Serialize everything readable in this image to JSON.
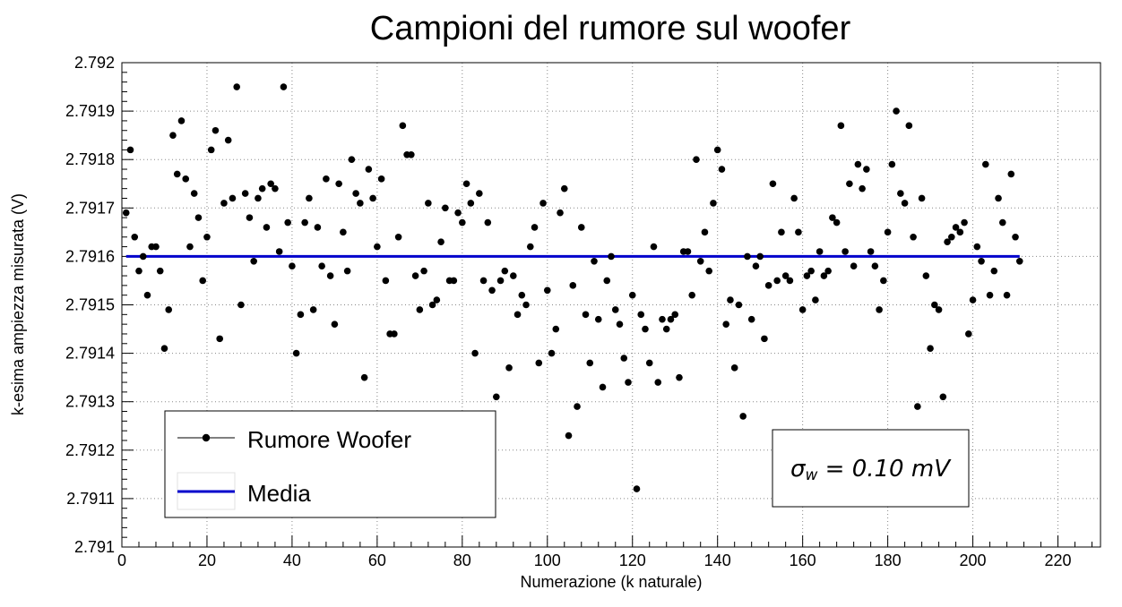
{
  "chart_data": {
    "type": "scatter",
    "title": "Campioni del rumore sul woofer",
    "xlabel": "Numerazione (k naturale)",
    "ylabel": "k-esima ampiezza misurata (V)",
    "xlim": [
      0,
      230
    ],
    "ylim": [
      2.791,
      2.792
    ],
    "xticks": [
      "0",
      "20",
      "40",
      "60",
      "80",
      "100",
      "120",
      "140",
      "160",
      "180",
      "200",
      "220"
    ],
    "yticks": [
      "2.791",
      "2.7911",
      "2.7912",
      "2.7913",
      "2.7914",
      "2.7915",
      "2.7916",
      "2.7917",
      "2.7918",
      "2.7919",
      "2.792"
    ],
    "grid": true,
    "legend_position": "bottom-left",
    "series": [
      {
        "name": "Rumore Woofer",
        "style": "markers",
        "color": "#000000",
        "x": [
          1,
          2,
          3,
          4,
          5,
          6,
          7,
          8,
          9,
          10,
          11,
          12,
          13,
          14,
          15,
          16,
          17,
          18,
          19,
          20,
          21,
          22,
          23,
          24,
          25,
          26,
          27,
          28,
          29,
          30,
          31,
          32,
          33,
          34,
          35,
          36,
          37,
          38,
          39,
          40,
          41,
          42,
          43,
          44,
          45,
          46,
          47,
          48,
          49,
          50,
          51,
          52,
          53,
          54,
          55,
          56,
          57,
          58,
          59,
          60,
          61,
          62,
          63,
          64,
          65,
          66,
          67,
          68,
          69,
          70,
          71,
          72,
          73,
          74,
          75,
          76,
          77,
          78,
          79,
          80,
          81,
          82,
          83,
          84,
          85,
          86,
          87,
          88,
          89,
          90,
          91,
          92,
          93,
          94,
          95,
          96,
          97,
          98,
          99,
          100,
          101,
          102,
          103,
          104,
          105,
          106,
          107,
          108,
          109,
          110,
          111,
          112,
          113,
          114,
          115,
          116,
          117,
          118,
          119,
          120,
          121,
          122,
          123,
          124,
          125,
          126,
          127,
          128,
          129,
          130,
          131,
          132,
          133,
          134,
          135,
          136,
          137,
          138,
          139,
          140,
          141,
          142,
          143,
          144,
          145,
          146,
          147,
          148,
          149,
          150,
          151,
          152,
          153,
          154,
          155,
          156,
          157,
          158,
          159,
          160,
          161,
          162,
          163,
          164,
          165,
          166,
          167,
          168,
          169,
          170,
          171,
          172,
          173,
          174,
          175,
          176,
          177,
          178,
          179,
          180,
          181,
          182,
          183,
          184,
          185,
          186,
          187,
          188,
          189,
          190,
          191,
          192,
          193,
          194,
          195,
          196,
          197,
          198,
          199,
          200,
          201,
          202,
          203,
          204,
          205,
          206,
          207,
          208,
          209,
          210,
          211
        ],
        "y": [
          2.79169,
          2.79182,
          2.79164,
          2.79157,
          2.7916,
          2.79152,
          2.79162,
          2.79162,
          2.79157,
          2.79141,
          2.79149,
          2.79185,
          2.79177,
          2.79188,
          2.79176,
          2.79162,
          2.79173,
          2.79168,
          2.79155,
          2.79164,
          2.79182,
          2.79186,
          2.79143,
          2.79171,
          2.79184,
          2.79172,
          2.79195,
          2.7915,
          2.79173,
          2.79168,
          2.79159,
          2.79172,
          2.79174,
          2.79166,
          2.79175,
          2.79174,
          2.79161,
          2.79195,
          2.79167,
          2.79158,
          2.7914,
          2.79148,
          2.79167,
          2.79172,
          2.79149,
          2.79166,
          2.79158,
          2.79176,
          2.79156,
          2.79146,
          2.79175,
          2.79165,
          2.79157,
          2.7918,
          2.79173,
          2.79171,
          2.79135,
          2.79178,
          2.79172,
          2.79162,
          2.79176,
          2.79155,
          2.79144,
          2.79144,
          2.79164,
          2.79187,
          2.79181,
          2.79181,
          2.79156,
          2.79149,
          2.79157,
          2.79171,
          2.7915,
          2.79151,
          2.79163,
          2.7917,
          2.79155,
          2.79155,
          2.79169,
          2.79167,
          2.79175,
          2.79171,
          2.7914,
          2.79173,
          2.79155,
          2.79167,
          2.79153,
          2.79131,
          2.79155,
          2.79157,
          2.79137,
          2.79156,
          2.79148,
          2.79152,
          2.7915,
          2.79162,
          2.79166,
          2.79138,
          2.79171,
          2.79153,
          2.7914,
          2.79145,
          2.79169,
          2.79174,
          2.79123,
          2.79154,
          2.79129,
          2.79166,
          2.79148,
          2.79138,
          2.79159,
          2.79147,
          2.79133,
          2.79155,
          2.7916,
          2.79149,
          2.79146,
          2.79139,
          2.79134,
          2.79152,
          2.79112,
          2.79148,
          2.79145,
          2.79138,
          2.79162,
          2.79134,
          2.79147,
          2.79145,
          2.79147,
          2.79148,
          2.79135,
          2.79161,
          2.79161,
          2.79152,
          2.7918,
          2.79159,
          2.79165,
          2.79157,
          2.79171,
          2.79182,
          2.79178,
          2.79146,
          2.79151,
          2.79137,
          2.7915,
          2.79127,
          2.7916,
          2.79147,
          2.79158,
          2.7916,
          2.79143,
          2.79154,
          2.79175,
          2.79155,
          2.79165,
          2.79156,
          2.79155,
          2.79172,
          2.79165,
          2.79149,
          2.79156,
          2.79157,
          2.79151,
          2.79161,
          2.79156,
          2.79157,
          2.79168,
          2.79167,
          2.79187,
          2.79161,
          2.79175,
          2.79158,
          2.79179,
          2.79174,
          2.79178,
          2.79161,
          2.79158,
          2.79149,
          2.79155,
          2.79165,
          2.79179,
          2.7919,
          2.79173,
          2.79171,
          2.79187,
          2.79164,
          2.79129,
          2.79172,
          2.79156,
          2.79141,
          2.7915,
          2.79149,
          2.79131,
          2.79163,
          2.79164,
          2.79166,
          2.79165,
          2.79167,
          2.79144,
          2.79151,
          2.79162,
          2.79159,
          2.79179,
          2.79152,
          2.79157,
          2.79172,
          2.79167,
          2.79152,
          2.79177,
          2.79164,
          2.79159
        ]
      },
      {
        "name": "Media",
        "style": "line",
        "color": "#0000cc",
        "x": [
          1,
          211
        ],
        "y": [
          2.7916,
          2.7916
        ]
      }
    ]
  },
  "annotation": {
    "sigma": "σ",
    "sub": "w",
    "value": " = 0.10 mV"
  }
}
